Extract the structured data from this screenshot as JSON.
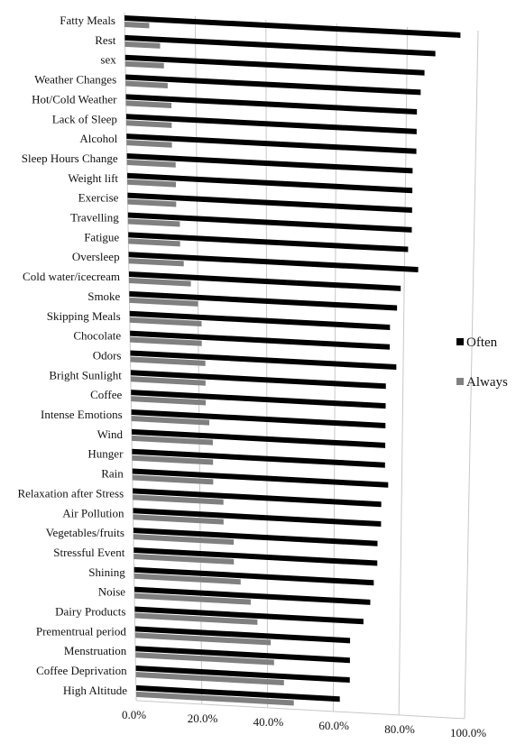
{
  "chart_data": {
    "type": "bar",
    "orientation": "horizontal",
    "perspective": "3d",
    "title": "",
    "xlabel": "",
    "ylabel": "",
    "xlim": [
      0,
      100
    ],
    "x_ticks": [
      "0.0%",
      "20.0%",
      "40.0%",
      "60.0%",
      "80.0%",
      "100.0%"
    ],
    "grid": true,
    "legend_position": "right",
    "categories": [
      "Fatty Meals",
      "Rest",
      "sex",
      "Weather Changes",
      "Hot/Cold Weather",
      "Lack of Sleep",
      "Alcohol",
      "Sleep Hours Change",
      "Weight lift",
      "Exercise",
      "Travelling",
      "Fatigue",
      "Oversleep",
      "Cold water/icecream",
      "Smoke",
      "Skipping Meals",
      "Chocolate",
      "Odors",
      "Bright Sunlight",
      "Coffee",
      "Intense Emotions",
      "Wind",
      "Hunger",
      "Rain",
      "Relaxation after Stress",
      "Air Pollution",
      "Vegetables/fruits",
      "Stressful Event",
      "Shining",
      "Noise",
      "Dairy Products",
      "Prementrual period",
      "Menstruation",
      "Coffee Deprivation",
      "High Altitude"
    ],
    "series": [
      {
        "name": "Often",
        "color": "#000000",
        "values": [
          95,
          88,
          85,
          84,
          83,
          83,
          83,
          82,
          82,
          82,
          82,
          81,
          84,
          79,
          78,
          76,
          76,
          78,
          75,
          75,
          75,
          75,
          75,
          76,
          74,
          74,
          73,
          73,
          72,
          71,
          69,
          65,
          65,
          65,
          62
        ]
      },
      {
        "name": "Always",
        "color": "#808080",
        "values": [
          7,
          10,
          11,
          12,
          13,
          13,
          13,
          14,
          14,
          14,
          15,
          15,
          16,
          18,
          20,
          21,
          21,
          22,
          22,
          22,
          23,
          24,
          24,
          24,
          27,
          27,
          30,
          30,
          32,
          35,
          37,
          41,
          42,
          45,
          48
        ]
      }
    ]
  }
}
